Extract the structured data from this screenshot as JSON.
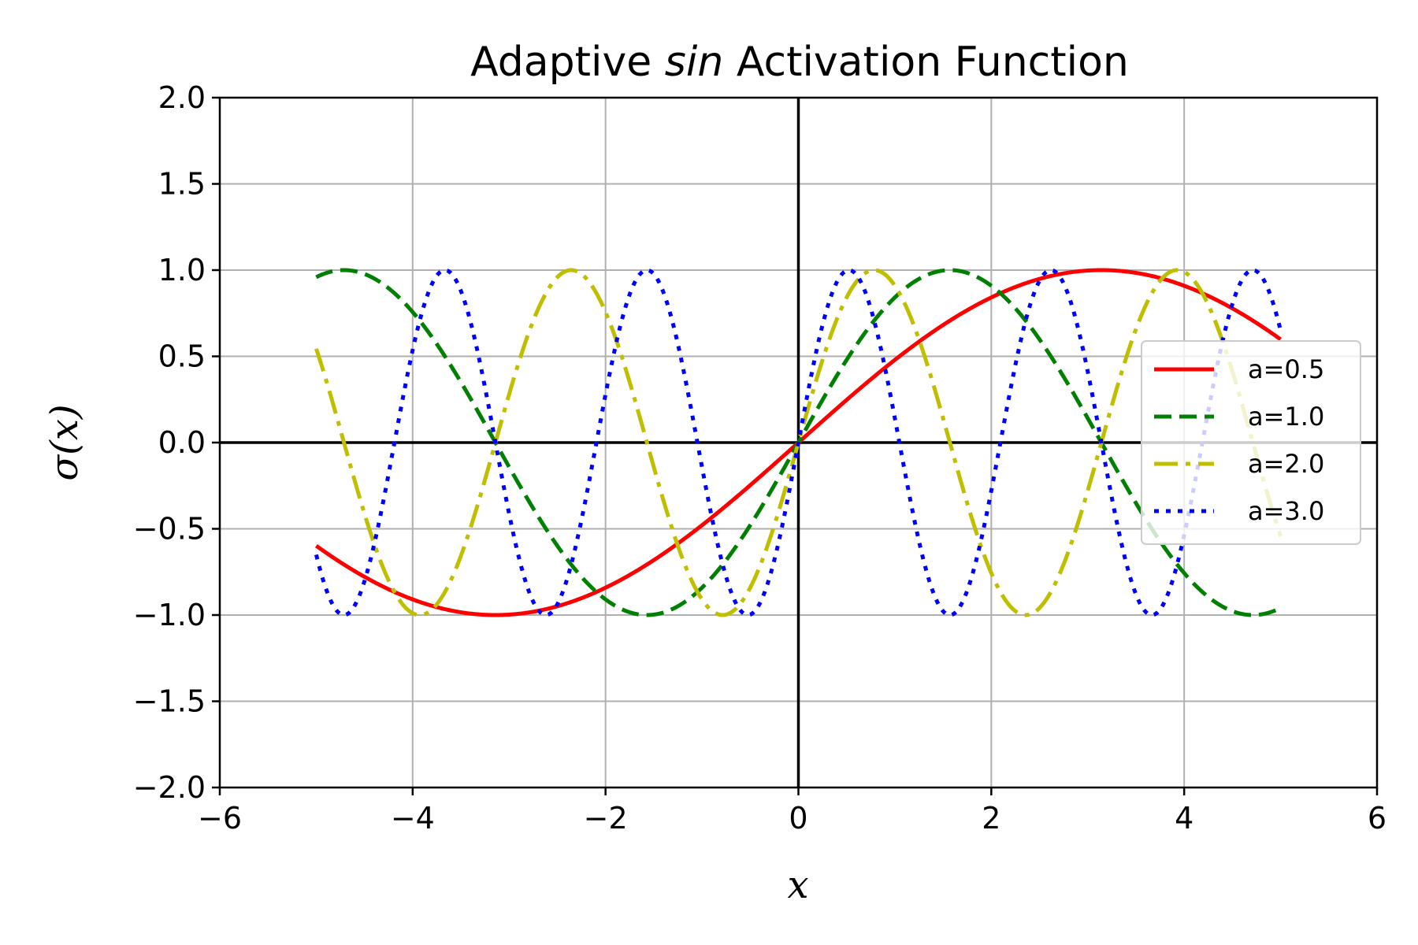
{
  "chart_data": {
    "type": "line",
    "title_prefix": "Adaptive ",
    "title_italic": "sin",
    "title_suffix": " Activation Function",
    "xlabel": "x",
    "ylabel": "σ(x)",
    "xlim": [
      -6,
      6
    ],
    "ylim": [
      -2,
      2
    ],
    "xticks": [
      -6,
      -4,
      -2,
      0,
      2,
      4,
      6
    ],
    "xtick_labels": [
      "−6",
      "−4",
      "−2",
      "0",
      "2",
      "4",
      "6"
    ],
    "yticks": [
      -2.0,
      -1.5,
      -1.0,
      -0.5,
      0.0,
      0.5,
      1.0,
      1.5,
      2.0
    ],
    "ytick_labels": [
      "−2.0",
      "−1.5",
      "−1.0",
      "−0.5",
      "0.0",
      "0.5",
      "1.0",
      "1.5",
      "2.0"
    ],
    "grid": true,
    "legend_position": "center-right",
    "function": "sin(a*x)",
    "x_range": [
      -5,
      5
    ],
    "series": [
      {
        "name": "a=0.5",
        "a": 0.5,
        "color": "#ff0000",
        "style": "solid"
      },
      {
        "name": "a=1.0",
        "a": 1.0,
        "color": "#008000",
        "style": "dashed"
      },
      {
        "name": "a=2.0",
        "a": 2.0,
        "color": "#bfbf00",
        "style": "dashdot"
      },
      {
        "name": "a=3.0",
        "a": 3.0,
        "color": "#0000ff",
        "style": "dotted"
      }
    ]
  }
}
